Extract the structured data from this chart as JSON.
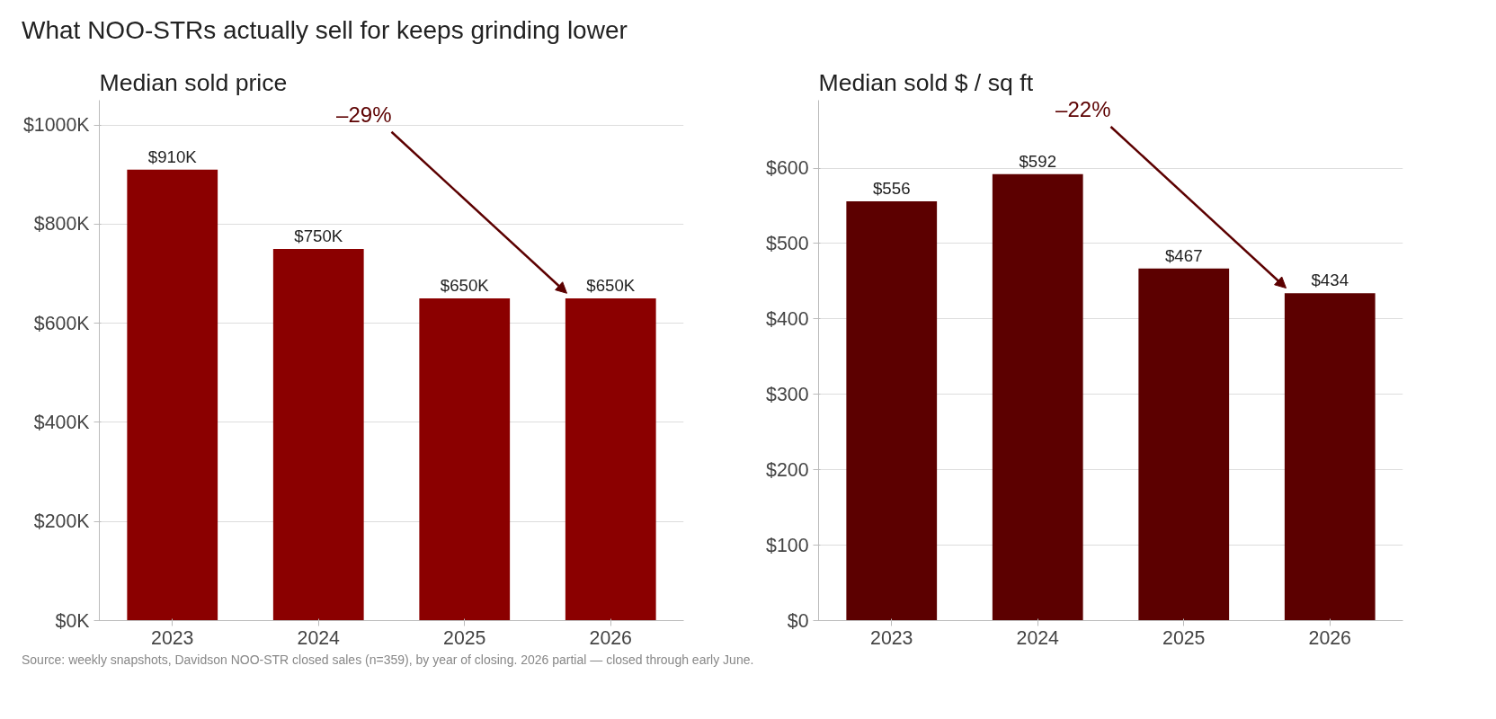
{
  "chart_data": [
    {
      "type": "bar",
      "title": "What NOO-STRs actually sell for keeps grinding lower",
      "subtitle": "Median sold price",
      "categories": [
        "2023",
        "2024",
        "2025",
        "2026"
      ],
      "values": [
        910,
        750,
        650,
        650
      ],
      "color": "#8b0000",
      "value_labels": [
        "$910K",
        "$750K",
        "$650K",
        "$650K"
      ],
      "ylim": [
        0,
        1050
      ],
      "yticks": [
        {
          "value": 0,
          "label": "$0K"
        },
        {
          "value": 200,
          "label": "$200K"
        },
        {
          "value": 400,
          "label": "$400K"
        },
        {
          "value": 600,
          "label": "$600K"
        },
        {
          "value": 800,
          "label": "$800K"
        },
        {
          "value": 1000,
          "label": "$1000K"
        }
      ],
      "grid": "y",
      "legend": false,
      "annotations": [
        "–29%"
      ]
    },
    {
      "type": "bar",
      "subtitle": "Median sold $ / sq ft",
      "categories": [
        "2023",
        "2024",
        "2025",
        "2026"
      ],
      "values": [
        556,
        592,
        467,
        434
      ],
      "color": "#5c0000",
      "value_labels": [
        "$556",
        "$592",
        "$467",
        "$434"
      ],
      "ylim": [
        0,
        690
      ],
      "yticks": [
        {
          "value": 0,
          "label": "$0"
        },
        {
          "value": 100,
          "label": "$100"
        },
        {
          "value": 200,
          "label": "$200"
        },
        {
          "value": 300,
          "label": "$300"
        },
        {
          "value": 400,
          "label": "$400"
        },
        {
          "value": 500,
          "label": "$500"
        },
        {
          "value": 600,
          "label": "$600"
        }
      ],
      "grid": "y",
      "legend": false,
      "annotations": [
        "–22%",
        "Source: weekly snapshots, Davidson NOO-STR closed sales (n=359), by year of closing. 2026 partial — closed through early June."
      ]
    }
  ]
}
